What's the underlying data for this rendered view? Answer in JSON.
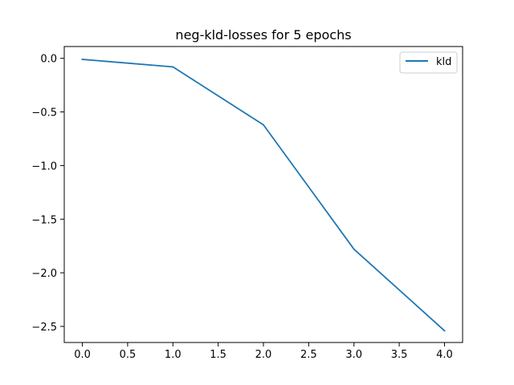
{
  "chart_data": {
    "type": "line",
    "title": "neg-kld-losses for 5 epochs",
    "xlabel": "",
    "ylabel": "",
    "xlim": [
      -0.2,
      4.2
    ],
    "ylim": [
      -2.65,
      0.11
    ],
    "xticks": [
      0.0,
      0.5,
      1.0,
      1.5,
      2.0,
      2.5,
      3.0,
      3.5,
      4.0
    ],
    "xtick_labels": [
      "0.0",
      "0.5",
      "1.0",
      "1.5",
      "2.0",
      "2.5",
      "3.0",
      "3.5",
      "4.0"
    ],
    "yticks": [
      0.0,
      -0.5,
      -1.0,
      -1.5,
      -2.0,
      -2.5
    ],
    "ytick_labels": [
      "0.0",
      "−0.5",
      "−1.0",
      "−1.5",
      "−2.0",
      "−2.5"
    ],
    "grid": false,
    "legend_position": "top-right",
    "x": [
      0,
      1,
      2,
      3,
      4
    ],
    "series": [
      {
        "name": "kld",
        "color": "#1f77b4",
        "values": [
          -0.01,
          -0.08,
          -0.62,
          -1.78,
          -2.54
        ]
      }
    ]
  }
}
